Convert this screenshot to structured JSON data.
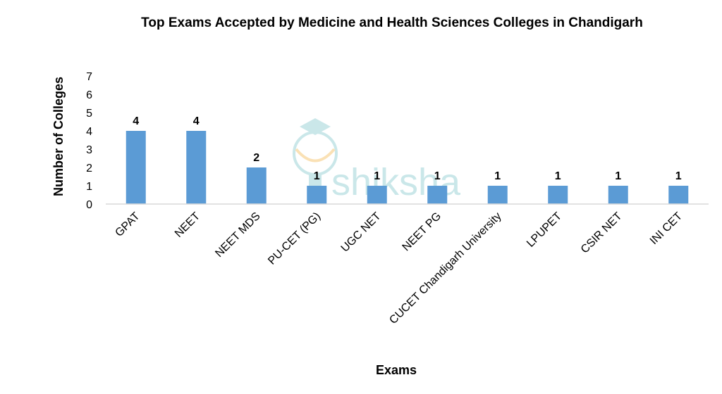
{
  "chart_data": {
    "type": "bar",
    "title": "Top Exams Accepted by Medicine and Health Sciences Colleges in Chandigarh",
    "xlabel": "Exams",
    "ylabel": "Number of Colleges",
    "categories": [
      "GPAT",
      "NEET",
      "NEET MDS",
      "PU-CET (PG)",
      "UGC NET",
      "NEET PG",
      "CUCET Chandigarh University",
      "LPUPET",
      "CSIR NET",
      "INI CET"
    ],
    "values": [
      4,
      4,
      2,
      1,
      1,
      1,
      1,
      1,
      1,
      1
    ],
    "ylim": [
      0,
      7
    ],
    "yticks": [
      0,
      1,
      2,
      3,
      4,
      5,
      6,
      7
    ],
    "grid": false,
    "legend": "none",
    "data_labels": true,
    "colors": {
      "bar": "#5b9bd5",
      "axis": "#d9d9d9",
      "watermark": "#9fd4d8"
    }
  },
  "watermark": {
    "text": "shiksha",
    "icon": "graduation-cap-bulb-icon"
  }
}
